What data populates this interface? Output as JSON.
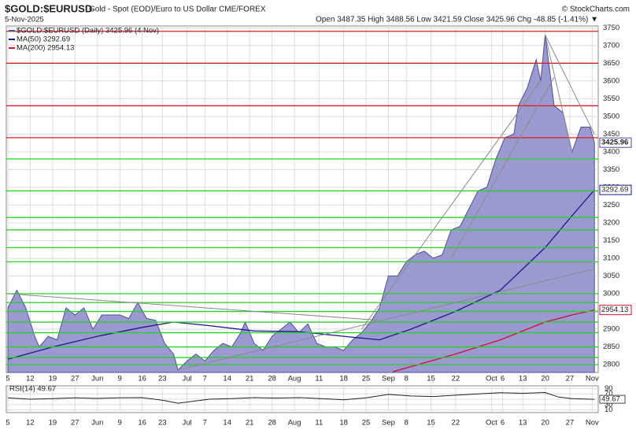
{
  "header": {
    "symbol": "$GOLD:$EURUSD",
    "description": "Gold - Spot (EOD)/Euro to US Dollar  CME/FOREX",
    "copyright": "© StockCharts.com",
    "date": "5-Nov-2025",
    "quote": "Open 3487.35  High 3488.56  Low 3421.59  Close 3425.96  Chg -48.85 (-1.41%) ▼"
  },
  "chart_data": {
    "type": "area",
    "xlim": [
      -0.35,
      131.85
    ],
    "ylim": [
      2778,
      3755
    ],
    "xticks": [
      {
        "value": 0,
        "label": "5"
      },
      {
        "value": 5,
        "label": "12"
      },
      {
        "value": 10,
        "label": "19"
      },
      {
        "value": 15,
        "label": "27"
      },
      {
        "value": 20,
        "label": "Jun"
      },
      {
        "value": 25,
        "label": "9"
      },
      {
        "value": 30,
        "label": "16"
      },
      {
        "value": 34.5,
        "label": "23"
      },
      {
        "value": 40,
        "label": "Jul"
      },
      {
        "value": 44,
        "label": "7"
      },
      {
        "value": 49,
        "label": "14"
      },
      {
        "value": 54,
        "label": "21"
      },
      {
        "value": 59,
        "label": "28"
      },
      {
        "value": 64,
        "label": "Aug"
      },
      {
        "value": 69.5,
        "label": "11"
      },
      {
        "value": 75,
        "label": "18"
      },
      {
        "value": 80,
        "label": "25"
      },
      {
        "value": 85,
        "label": "Sep"
      },
      {
        "value": 89,
        "label": "8"
      },
      {
        "value": 94.5,
        "label": "15"
      },
      {
        "value": 100,
        "label": "22"
      },
      {
        "value": 108,
        "label": "Oct"
      },
      {
        "value": 110.5,
        "label": "6"
      },
      {
        "value": 115,
        "label": "13"
      },
      {
        "value": 120,
        "label": "20"
      },
      {
        "value": 125.5,
        "label": "27"
      },
      {
        "value": 130.5,
        "label": "Nov"
      }
    ],
    "yticks": [
      2800,
      2850,
      2900,
      2950,
      3000,
      3050,
      3100,
      3150,
      3200,
      3250,
      3300,
      3350,
      3400,
      3450,
      3500,
      3550,
      3600,
      3650,
      3700,
      3750
    ],
    "grid": true,
    "series": [
      {
        "name": "$GOLD:$EURUSD (Daily) 3425.96 (4 Nov)",
        "color": "#4d4d99",
        "fill": "#9a9ad0",
        "tag": "3425.96",
        "x": [
          0,
          2,
          4,
          6,
          7,
          9,
          11,
          13,
          15,
          17,
          19,
          21,
          23,
          25,
          27,
          29,
          31,
          33,
          35,
          37,
          38,
          40,
          42,
          44,
          46,
          48,
          50,
          52,
          53,
          55,
          57,
          59,
          61,
          63,
          65,
          67,
          69,
          71,
          73,
          75,
          77,
          79,
          81,
          83,
          85,
          87,
          89,
          91,
          93,
          95,
          97,
          99,
          101,
          103,
          105,
          107,
          109,
          111,
          113,
          114,
          116,
          118,
          119,
          120,
          122,
          124,
          126,
          128,
          130,
          131
        ],
        "values": [
          2960,
          3010,
          2960,
          2880,
          2850,
          2880,
          2870,
          2960,
          2940,
          2960,
          2900,
          2940,
          2940,
          2940,
          2930,
          2975,
          2930,
          2925,
          2860,
          2830,
          2785,
          2810,
          2830,
          2810,
          2840,
          2860,
          2850,
          2890,
          2920,
          2860,
          2840,
          2880,
          2900,
          2920,
          2890,
          2915,
          2860,
          2850,
          2850,
          2840,
          2870,
          2890,
          2920,
          2960,
          3050,
          3050,
          3090,
          3110,
          3120,
          3100,
          3110,
          3180,
          3190,
          3240,
          3290,
          3300,
          3380,
          3440,
          3450,
          3530,
          3580,
          3660,
          3600,
          3730,
          3530,
          3510,
          3400,
          3470,
          3470,
          3425.96
        ]
      },
      {
        "name": "MA(50) 3292.69",
        "color": "#1a1a8c",
        "tag": "3292.69",
        "x": [
          0,
          10,
          20,
          30,
          37,
          45,
          55,
          65,
          75,
          83,
          90,
          100,
          110,
          120,
          126,
          131
        ],
        "values": [
          2815,
          2850,
          2880,
          2905,
          2920,
          2910,
          2895,
          2893,
          2880,
          2870,
          2900,
          2950,
          3010,
          3130,
          3220,
          3292.69
        ]
      },
      {
        "name": "MA(200) 2954.13",
        "color": "#cc1133",
        "tag": "2954.13",
        "x": [
          86,
          100,
          110,
          120,
          126,
          131
        ],
        "values": [
          2780,
          2830,
          2870,
          2920,
          2940,
          2954.13
        ]
      }
    ],
    "levels": [
      {
        "color": "#d82020",
        "values": [
          3740,
          3650,
          3530,
          3440
        ]
      },
      {
        "color": "#2ad02a",
        "values": [
          3380,
          3290,
          3215,
          3180,
          3130,
          3090,
          3000,
          2975,
          2950,
          2920,
          2890,
          2850,
          2820,
          2800
        ]
      }
    ],
    "trendline_color": "#8a8a8a",
    "trendlines": [
      [
        0,
        3000,
        83,
        2925
      ],
      [
        38,
        2785,
        131,
        3070
      ],
      [
        79,
        2900,
        119,
        3600
      ],
      [
        99,
        3100,
        122,
        3610
      ],
      [
        120,
        3730,
        126,
        3400
      ],
      [
        120,
        3730,
        131,
        3450
      ]
    ],
    "rsi": {
      "label": "RSI(14) 49.67",
      "tag": "49.67",
      "color": "#222",
      "ylim": [
        0,
        100
      ],
      "yticks": [
        90,
        70,
        50,
        30,
        10
      ],
      "x": [
        0,
        5,
        10,
        15,
        20,
        25,
        30,
        35,
        38,
        45,
        50,
        55,
        60,
        65,
        70,
        75,
        80,
        85,
        90,
        95,
        100,
        105,
        110,
        115,
        120,
        123,
        126,
        131
      ],
      "values": [
        55,
        50,
        52,
        55,
        53,
        55,
        56,
        45,
        35,
        50,
        52,
        56,
        54,
        56,
        52,
        48,
        55,
        68,
        62,
        60,
        65,
        70,
        74,
        72,
        75,
        58,
        52,
        49.67
      ]
    }
  }
}
